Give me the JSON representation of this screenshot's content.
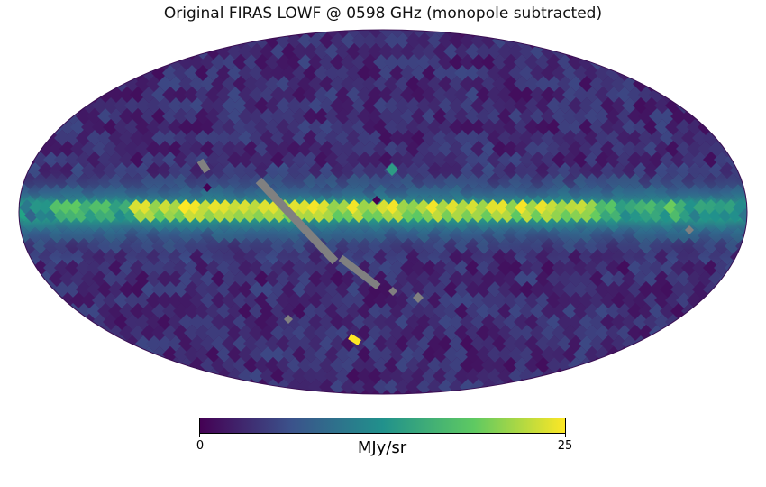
{
  "title": "Original FIRAS LOWF @ 0598 GHz (monopole subtracted)",
  "projection": "mollweide",
  "colorbar": {
    "min_label": "0",
    "max_label": "25",
    "min": 0,
    "max": 25,
    "unit": "MJy/sr",
    "colormap": [
      "#440154",
      "#3b528b",
      "#21918c",
      "#5ec962",
      "#fde725"
    ]
  },
  "colors": {
    "masked": "#808080",
    "background": "#ffffff"
  }
}
